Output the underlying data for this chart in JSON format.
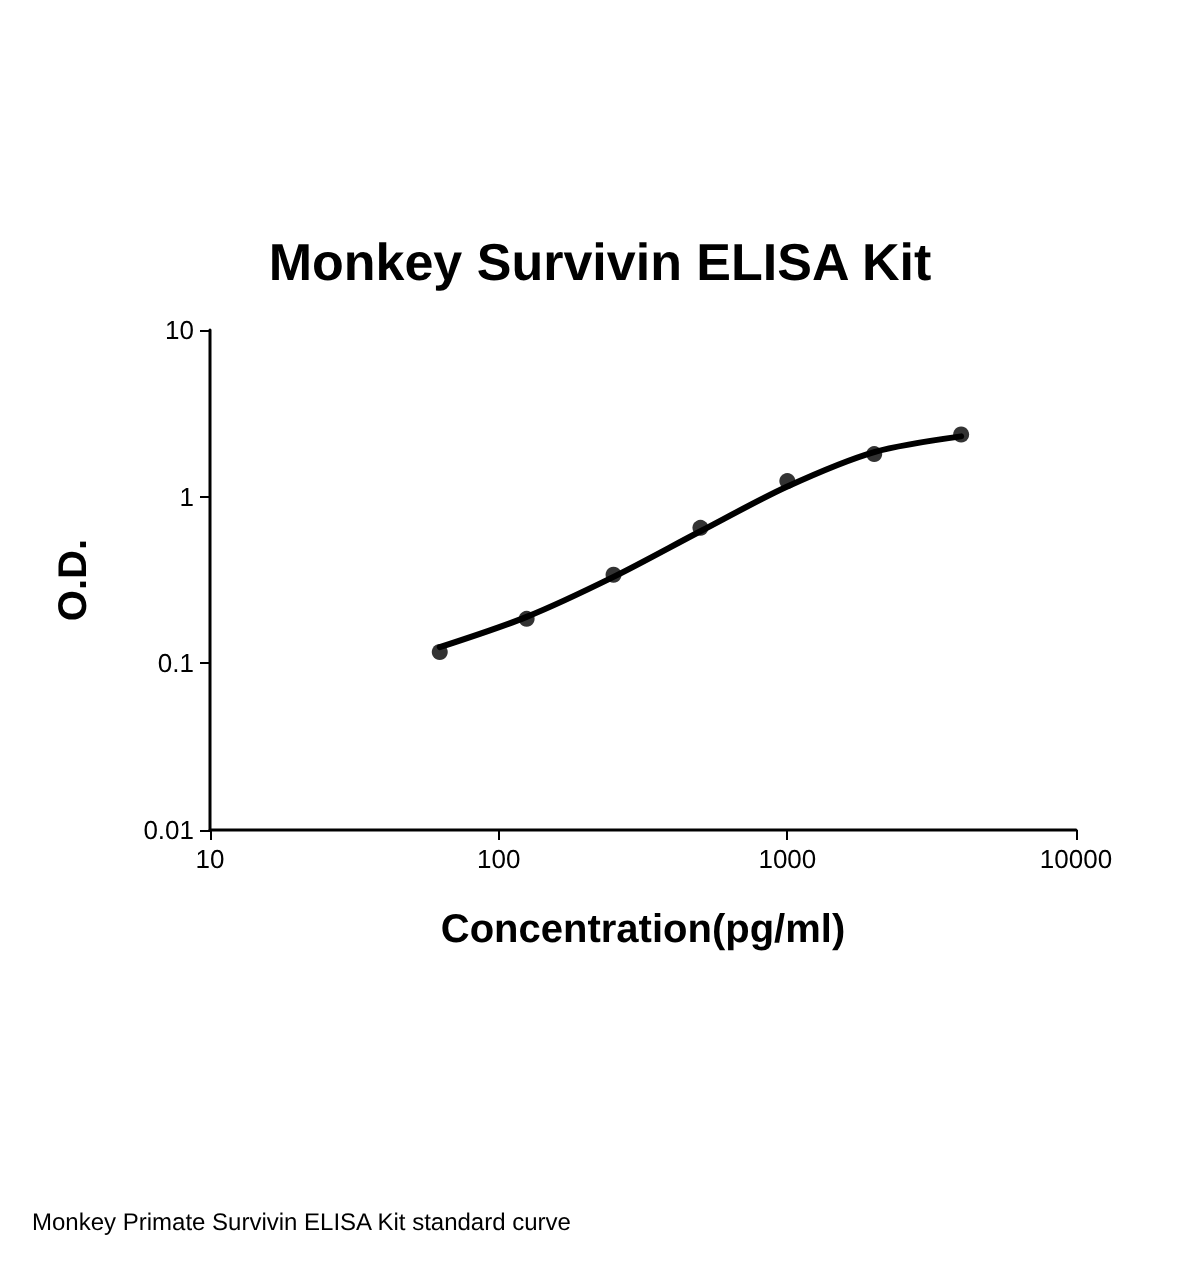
{
  "chart_data": {
    "type": "scatter",
    "title": "Monkey Survivin ELISA Kit",
    "xlabel": "Concentration(pg/ml)",
    "ylabel": "O.D.",
    "log": "xy",
    "grid": false,
    "xlim": [
      10,
      10000
    ],
    "xticks": [
      10,
      100,
      1000,
      10000
    ],
    "ylim": [
      0.01,
      10
    ],
    "yticks": [
      0.01,
      0.1,
      1,
      10
    ],
    "series": [
      {
        "color": "#000000",
        "marker": "circle",
        "x": [
          62.5,
          125,
          250,
          500,
          1000,
          2000,
          4000
        ],
        "values": [
          0.117,
          0.185,
          0.34,
          0.65,
          1.24,
          1.8,
          2.36
        ]
      },
      {
        "type": "line",
        "color": "#000000",
        "marker": "none",
        "line_style": "solid",
        "x": [
          62.5,
          125,
          250,
          500,
          1000,
          2000,
          4000
        ],
        "values": [
          0.125,
          0.19,
          0.33,
          0.62,
          1.15,
          1.85,
          2.3
        ]
      }
    ],
    "annotations": [
      "Monkey Primate Survivin ELISA Kit standard curve"
    ]
  }
}
